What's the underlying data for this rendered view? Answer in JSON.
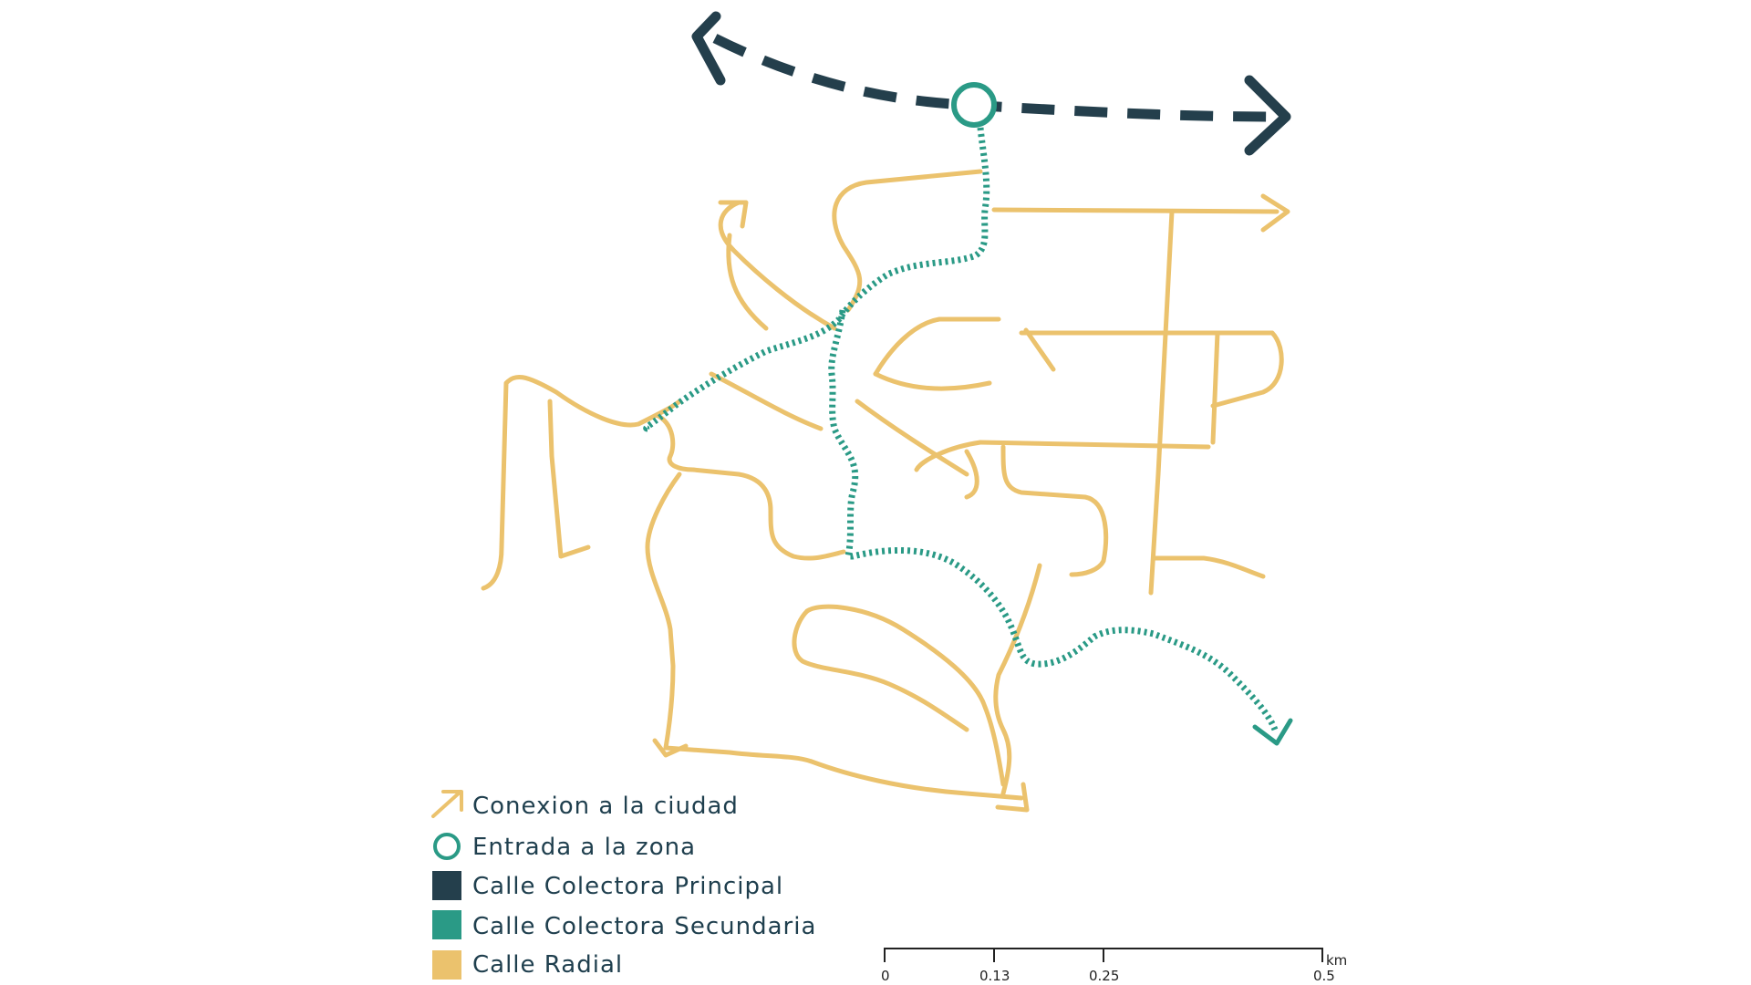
{
  "colors": {
    "background": "#ffffff",
    "principal": "#243f4c",
    "secundaria": "#2a9a86",
    "radial": "#ebc26d",
    "text": "#1f3f4e"
  },
  "legend": {
    "items": [
      {
        "symbol": "arrow-icon",
        "color": "#ebc26d",
        "label": "Conexion a la ciudad"
      },
      {
        "symbol": "ring-icon",
        "color": "#2a9a86",
        "label": "Entrada a la zona"
      },
      {
        "symbol": "square-icon",
        "color": "#243f4c",
        "label": "Calle Colectora Principal"
      },
      {
        "symbol": "square-icon",
        "color": "#2a9a86",
        "label": "Calle Colectora Secundaria"
      },
      {
        "symbol": "square-icon",
        "color": "#ebc26d",
        "label": "Calle Radial"
      }
    ]
  },
  "scale_bar": {
    "ticks": [
      "0",
      "0.13",
      "0.25",
      "0.5"
    ],
    "unit": "km"
  }
}
